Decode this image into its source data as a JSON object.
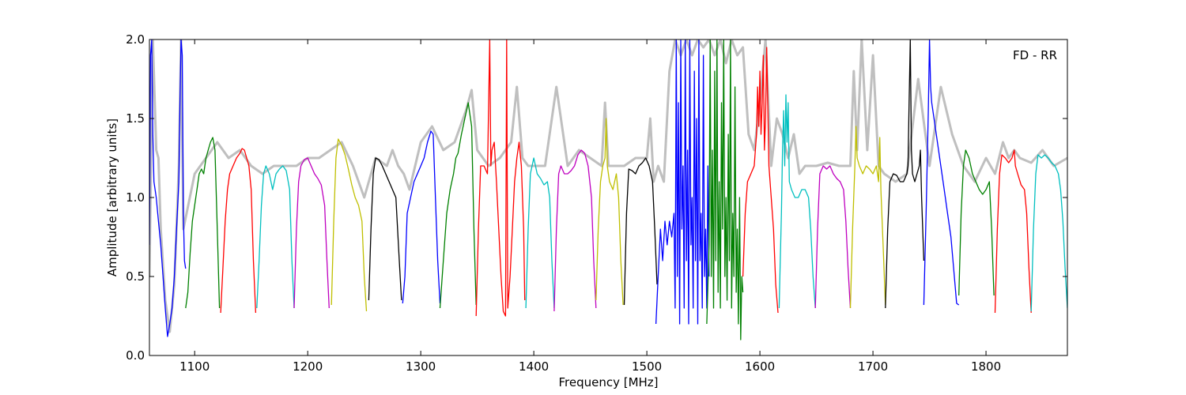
{
  "chart_data": {
    "type": "line",
    "annotation": "FD - RR",
    "xlabel": "Frequency [MHz]",
    "ylabel": "Amplitude [arbitrary units]",
    "xlim": [
      1060,
      1872
    ],
    "ylim": [
      0,
      2.0
    ],
    "xticks": [
      1100,
      1200,
      1300,
      1400,
      1500,
      1600,
      1700,
      1800
    ],
    "yticks": [
      0.0,
      0.5,
      1.0,
      1.5,
      2.0
    ],
    "xtick_labels": [
      "1100",
      "1200",
      "1300",
      "1400",
      "1500",
      "1600",
      "1700",
      "1800"
    ],
    "ytick_labels": [
      "0.0",
      "0.5",
      "1.0",
      "1.5",
      "2.0"
    ],
    "grid": false,
    "colors": {
      "background_series": "#bfbfbf",
      "b": "#0000ff",
      "g": "#008000",
      "r": "#ff0000",
      "c": "#00bfbf",
      "m": "#bf00bf",
      "y": "#bfbf00",
      "k": "#000000"
    },
    "background_series": {
      "x": [
        1060,
        1063,
        1066,
        1068,
        1070,
        1074,
        1078,
        1082,
        1086,
        1088,
        1090,
        1100,
        1110,
        1120,
        1130,
        1140,
        1150,
        1160,
        1170,
        1180,
        1190,
        1200,
        1210,
        1220,
        1230,
        1240,
        1250,
        1260,
        1270,
        1275,
        1280,
        1285,
        1290,
        1300,
        1310,
        1320,
        1330,
        1340,
        1345,
        1350,
        1360,
        1370,
        1380,
        1385,
        1390,
        1395,
        1400,
        1410,
        1420,
        1430,
        1440,
        1450,
        1460,
        1463,
        1466,
        1470,
        1480,
        1490,
        1500,
        1503,
        1506,
        1510,
        1515,
        1520,
        1525,
        1530,
        1535,
        1540,
        1545,
        1550,
        1555,
        1560,
        1565,
        1570,
        1575,
        1580,
        1585,
        1590,
        1595,
        1600,
        1605,
        1610,
        1615,
        1620,
        1625,
        1630,
        1635,
        1640,
        1650,
        1660,
        1670,
        1680,
        1683,
        1686,
        1690,
        1695,
        1700,
        1705,
        1710,
        1720,
        1730,
        1740,
        1750,
        1760,
        1770,
        1780,
        1790,
        1800,
        1808,
        1815,
        1820,
        1825,
        1830,
        1840,
        1850,
        1860,
        1872
      ],
      "y": [
        0.5,
        2.0,
        1.3,
        1.25,
        0.8,
        0.35,
        0.15,
        0.45,
        1.2,
        2.0,
        0.8,
        1.15,
        1.25,
        1.35,
        1.25,
        1.3,
        1.2,
        1.15,
        1.2,
        1.2,
        1.2,
        1.25,
        1.25,
        1.3,
        1.35,
        1.2,
        1.0,
        1.25,
        1.2,
        1.3,
        1.2,
        1.15,
        1.05,
        1.35,
        1.45,
        1.3,
        1.35,
        1.55,
        1.68,
        1.3,
        1.2,
        1.25,
        1.35,
        1.7,
        1.25,
        1.2,
        1.2,
        1.2,
        1.7,
        1.2,
        1.3,
        1.25,
        1.2,
        1.6,
        1.2,
        1.2,
        1.2,
        1.25,
        1.25,
        1.5,
        1.1,
        1.2,
        1.1,
        1.8,
        2.0,
        1.9,
        2.0,
        1.9,
        2.0,
        1.95,
        2.0,
        1.9,
        2.0,
        1.85,
        2.0,
        1.9,
        1.95,
        1.4,
        1.3,
        1.6,
        2.0,
        1.2,
        1.5,
        1.4,
        1.25,
        1.4,
        1.15,
        1.2,
        1.2,
        1.22,
        1.2,
        1.2,
        1.8,
        1.3,
        2.0,
        1.3,
        1.9,
        1.2,
        1.15,
        1.1,
        1.15,
        1.75,
        1.2,
        1.7,
        1.4,
        1.2,
        1.1,
        1.25,
        1.15,
        1.35,
        1.25,
        1.3,
        1.25,
        1.22,
        1.3,
        1.2,
        1.25
      ]
    },
    "series": [
      {
        "color": "b",
        "x": [
          1060,
          1061,
          1062,
          1063,
          1064,
          1066,
          1068,
          1070,
          1072,
          1074,
          1076,
          1078,
          1080,
          1082,
          1084,
          1086,
          1087,
          1088,
          1089,
          1090,
          1091,
          1092
        ],
        "y": [
          0.7,
          1.9,
          2.0,
          1.4,
          1.1,
          1.0,
          0.85,
          0.7,
          0.5,
          0.3,
          0.12,
          0.2,
          0.3,
          0.5,
          0.8,
          1.1,
          1.6,
          2.0,
          1.9,
          0.9,
          0.6,
          0.55
        ]
      },
      {
        "color": "g",
        "x": [
          1092,
          1094,
          1096,
          1098,
          1100,
          1102,
          1104,
          1106,
          1108,
          1110,
          1112,
          1114,
          1116,
          1118,
          1120,
          1122
        ],
        "y": [
          0.3,
          0.4,
          0.65,
          0.85,
          0.95,
          1.05,
          1.15,
          1.18,
          1.15,
          1.25,
          1.3,
          1.35,
          1.38,
          1.3,
          0.8,
          0.3
        ]
      },
      {
        "color": "r",
        "x": [
          1123,
          1125,
          1127,
          1129,
          1131,
          1134,
          1137,
          1140,
          1142,
          1144,
          1146,
          1148,
          1150,
          1152,
          1154
        ],
        "y": [
          0.27,
          0.55,
          0.85,
          1.05,
          1.15,
          1.2,
          1.25,
          1.28,
          1.31,
          1.3,
          1.25,
          1.2,
          1.05,
          0.6,
          0.27
        ]
      },
      {
        "color": "c",
        "x": [
          1155,
          1157,
          1159,
          1161,
          1163,
          1166,
          1169,
          1172,
          1175,
          1178,
          1181,
          1184,
          1186,
          1188
        ],
        "y": [
          0.3,
          0.6,
          0.95,
          1.15,
          1.2,
          1.15,
          1.05,
          1.15,
          1.18,
          1.2,
          1.17,
          1.05,
          0.6,
          0.3
        ]
      },
      {
        "color": "m",
        "x": [
          1188,
          1190,
          1192,
          1194,
          1197,
          1200,
          1203,
          1206,
          1209,
          1212,
          1215,
          1217,
          1219
        ],
        "y": [
          0.3,
          0.8,
          1.1,
          1.2,
          1.24,
          1.25,
          1.2,
          1.15,
          1.12,
          1.08,
          0.95,
          0.6,
          0.3
        ]
      },
      {
        "color": "y",
        "x": [
          1221,
          1223,
          1225,
          1227,
          1230,
          1233,
          1236,
          1239,
          1242,
          1245,
          1248,
          1250,
          1252
        ],
        "y": [
          0.32,
          0.85,
          1.25,
          1.37,
          1.33,
          1.27,
          1.18,
          1.08,
          1.0,
          0.95,
          0.85,
          0.5,
          0.28
        ]
      },
      {
        "color": "k",
        "x": [
          1254,
          1256,
          1258,
          1260,
          1263,
          1266,
          1269,
          1272,
          1275,
          1278,
          1281,
          1283
        ],
        "y": [
          0.35,
          0.8,
          1.15,
          1.25,
          1.24,
          1.2,
          1.15,
          1.1,
          1.05,
          1.0,
          0.6,
          0.35
        ]
      },
      {
        "color": "b",
        "x": [
          1284,
          1286,
          1288,
          1291,
          1294,
          1297,
          1300,
          1303,
          1306,
          1309,
          1311,
          1313,
          1315,
          1317
        ],
        "y": [
          0.33,
          0.5,
          0.9,
          1.0,
          1.1,
          1.15,
          1.2,
          1.25,
          1.35,
          1.42,
          1.4,
          1.0,
          0.6,
          0.33
        ]
      },
      {
        "color": "g",
        "x": [
          1317,
          1320,
          1323,
          1326,
          1329,
          1331,
          1333,
          1336,
          1339,
          1342,
          1345,
          1347,
          1349
        ],
        "y": [
          0.3,
          0.6,
          0.9,
          1.05,
          1.15,
          1.25,
          1.28,
          1.4,
          1.5,
          1.6,
          1.45,
          0.8,
          0.32
        ]
      },
      {
        "color": "r",
        "x": [
          1349,
          1351,
          1353,
          1356,
          1359,
          1361,
          1362,
          1363,
          1365,
          1367,
          1369,
          1371,
          1373,
          1375,
          1376,
          1377,
          1379,
          1381,
          1383,
          1385,
          1387,
          1389,
          1391,
          1392
        ],
        "y": [
          0.25,
          0.8,
          1.2,
          1.2,
          1.15,
          2.0,
          1.2,
          1.3,
          1.35,
          1.1,
          0.8,
          0.5,
          0.28,
          0.25,
          2.0,
          0.3,
          0.5,
          0.8,
          1.1,
          1.25,
          1.35,
          1.2,
          0.8,
          0.35
        ]
      },
      {
        "color": "c",
        "x": [
          1393,
          1395,
          1397,
          1400,
          1403,
          1406,
          1409,
          1412,
          1414,
          1416,
          1418
        ],
        "y": [
          0.3,
          0.8,
          1.15,
          1.25,
          1.15,
          1.12,
          1.08,
          1.1,
          1.0,
          0.6,
          0.3
        ]
      },
      {
        "color": "m",
        "x": [
          1418,
          1420,
          1422,
          1424,
          1427,
          1430,
          1433,
          1436,
          1439,
          1442,
          1445,
          1448,
          1451,
          1453,
          1455
        ],
        "y": [
          0.28,
          0.8,
          1.15,
          1.2,
          1.15,
          1.15,
          1.17,
          1.2,
          1.27,
          1.3,
          1.28,
          1.2,
          1.0,
          0.6,
          0.3
        ]
      },
      {
        "color": "y",
        "x": [
          1455,
          1457,
          1459,
          1461,
          1463,
          1464,
          1465,
          1467,
          1470,
          1473,
          1475,
          1477,
          1479
        ],
        "y": [
          0.35,
          0.8,
          1.1,
          1.2,
          1.25,
          1.5,
          1.2,
          1.1,
          1.05,
          1.15,
          1.0,
          0.6,
          0.32
        ]
      },
      {
        "color": "k",
        "x": [
          1480,
          1482,
          1484,
          1487,
          1490,
          1493,
          1496,
          1499,
          1502,
          1505,
          1507,
          1509
        ],
        "y": [
          0.32,
          0.9,
          1.18,
          1.17,
          1.15,
          1.2,
          1.22,
          1.25,
          1.2,
          1.1,
          0.8,
          0.45
        ]
      },
      {
        "color": "b",
        "x": [
          1508,
          1510,
          1512,
          1514,
          1516,
          1518,
          1520,
          1522,
          1524,
          1525,
          1526,
          1527,
          1528,
          1529,
          1530,
          1531,
          1532,
          1533,
          1534,
          1535,
          1536,
          1537,
          1538,
          1539,
          1540,
          1541,
          1542,
          1543,
          1544,
          1545,
          1546,
          1547,
          1548,
          1549,
          1550,
          1551,
          1552,
          1553,
          1554,
          1555
        ],
        "y": [
          0.2,
          0.5,
          0.8,
          0.6,
          0.85,
          0.7,
          0.85,
          0.75,
          0.9,
          0.3,
          2.0,
          0.5,
          1.6,
          0.2,
          2.0,
          0.8,
          1.2,
          0.3,
          2.0,
          0.6,
          1.3,
          0.2,
          2.0,
          0.7,
          1.0,
          0.3,
          1.8,
          0.6,
          1.5,
          0.2,
          2.0,
          0.6,
          0.9,
          0.3,
          1.9,
          0.5,
          0.8,
          0.3,
          1.2,
          0.5
        ]
      },
      {
        "color": "g",
        "x": [
          1553,
          1555,
          1556,
          1557,
          1558,
          1559,
          1560,
          1561,
          1562,
          1563,
          1564,
          1565,
          1566,
          1567,
          1568,
          1569,
          1570,
          1571,
          1572,
          1573,
          1574,
          1575,
          1576,
          1577,
          1578,
          1579,
          1580,
          1581,
          1582,
          1583,
          1584,
          1585
        ],
        "y": [
          0.2,
          0.7,
          2.0,
          0.5,
          1.3,
          0.3,
          1.8,
          0.6,
          2.0,
          0.4,
          1.1,
          0.3,
          1.6,
          0.8,
          2.0,
          0.5,
          1.0,
          0.35,
          1.4,
          0.6,
          2.0,
          0.3,
          0.9,
          0.5,
          1.7,
          0.4,
          0.8,
          0.2,
          1.0,
          0.1,
          0.5,
          0.4
        ]
      },
      {
        "color": "r",
        "x": [
          1585,
          1587,
          1589,
          1592,
          1595,
          1597,
          1598,
          1599,
          1600,
          1601,
          1602,
          1603,
          1604,
          1605,
          1606,
          1608,
          1610,
          1612,
          1614,
          1616
        ],
        "y": [
          0.5,
          0.9,
          1.1,
          1.15,
          1.2,
          1.4,
          1.7,
          1.45,
          1.8,
          1.4,
          1.6,
          1.9,
          1.3,
          1.5,
          1.95,
          1.2,
          1.0,
          0.8,
          0.45,
          0.27
        ]
      },
      {
        "color": "c",
        "x": [
          1617,
          1619,
          1620,
          1621,
          1622,
          1623,
          1624,
          1625,
          1626,
          1628,
          1631,
          1634,
          1637,
          1640,
          1643,
          1645,
          1647,
          1649
        ],
        "y": [
          0.3,
          0.9,
          1.3,
          1.55,
          1.2,
          1.65,
          1.35,
          1.6,
          1.1,
          1.05,
          1.0,
          1.0,
          1.05,
          1.05,
          1.0,
          0.8,
          0.5,
          0.3
        ]
      },
      {
        "color": "m",
        "x": [
          1649,
          1651,
          1653,
          1656,
          1659,
          1662,
          1665,
          1668,
          1671,
          1674,
          1676,
          1678,
          1680
        ],
        "y": [
          0.3,
          0.8,
          1.15,
          1.2,
          1.18,
          1.2,
          1.15,
          1.12,
          1.1,
          1.05,
          0.85,
          0.55,
          0.3
        ]
      },
      {
        "color": "y",
        "x": [
          1680,
          1682,
          1684,
          1685,
          1686,
          1688,
          1691,
          1694,
          1697,
          1700,
          1703,
          1705,
          1706,
          1707,
          1709,
          1711
        ],
        "y": [
          0.3,
          0.8,
          1.2,
          1.45,
          1.25,
          1.2,
          1.15,
          1.2,
          1.18,
          1.15,
          1.2,
          1.1,
          1.38,
          1.05,
          0.7,
          0.32
        ]
      },
      {
        "color": "k",
        "x": [
          1711,
          1713,
          1715,
          1718,
          1721,
          1724,
          1727,
          1730,
          1731,
          1732,
          1733,
          1734,
          1735,
          1737,
          1739,
          1741,
          1742,
          1743,
          1745
        ],
        "y": [
          0.3,
          0.8,
          1.1,
          1.15,
          1.14,
          1.1,
          1.1,
          1.15,
          1.2,
          1.6,
          2.0,
          1.3,
          1.15,
          1.1,
          1.15,
          1.2,
          1.3,
          1.0,
          0.6
        ]
      },
      {
        "color": "b",
        "x": [
          1745,
          1747,
          1749,
          1750,
          1751,
          1752,
          1754,
          1757,
          1760,
          1763,
          1766,
          1769,
          1772,
          1774,
          1776
        ],
        "y": [
          0.32,
          0.9,
          1.55,
          2.0,
          1.7,
          1.6,
          1.5,
          1.35,
          1.2,
          1.05,
          0.9,
          0.75,
          0.5,
          0.33,
          0.32
        ]
      },
      {
        "color": "g",
        "x": [
          1776,
          1778,
          1780,
          1782,
          1785,
          1788,
          1791,
          1794,
          1797,
          1800,
          1803,
          1805,
          1807
        ],
        "y": [
          0.38,
          0.9,
          1.2,
          1.3,
          1.25,
          1.15,
          1.1,
          1.05,
          1.02,
          1.05,
          1.1,
          0.8,
          0.38
        ]
      },
      {
        "color": "r",
        "x": [
          1808,
          1810,
          1812,
          1814,
          1817,
          1820,
          1823,
          1825,
          1826,
          1828,
          1831,
          1834,
          1836,
          1838,
          1840
        ],
        "y": [
          0.27,
          0.8,
          1.15,
          1.27,
          1.25,
          1.22,
          1.25,
          1.3,
          1.2,
          1.15,
          1.08,
          1.05,
          0.9,
          0.55,
          0.27
        ]
      },
      {
        "color": "c",
        "x": [
          1840,
          1842,
          1844,
          1846,
          1849,
          1852,
          1855,
          1858,
          1861,
          1864,
          1866,
          1868,
          1870,
          1872
        ],
        "y": [
          0.28,
          0.8,
          1.15,
          1.27,
          1.25,
          1.27,
          1.25,
          1.22,
          1.2,
          1.15,
          1.05,
          0.85,
          0.55,
          0.3
        ]
      }
    ]
  }
}
